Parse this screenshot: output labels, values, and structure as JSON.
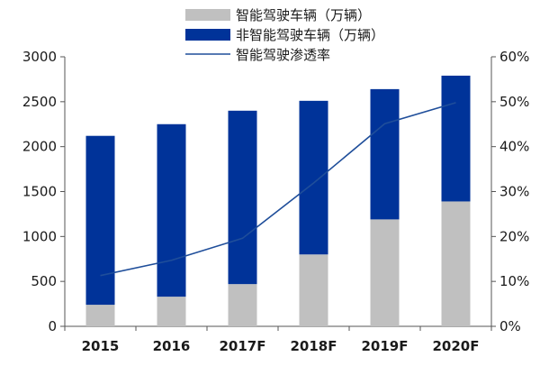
{
  "chart_data": {
    "type": "bar",
    "stacked": true,
    "categories": [
      "2015",
      "2016",
      "2017F",
      "2018F",
      "2019F",
      "2020F"
    ],
    "series": [
      {
        "name": "智能驾驶车辆（万辆）",
        "type": "bar",
        "axis": "left",
        "color": "#c0c0c0",
        "values": [
          240,
          330,
          470,
          800,
          1190,
          1390
        ]
      },
      {
        "name": "非智能驾驶车辆（万辆）",
        "type": "bar",
        "axis": "left",
        "color": "#003399",
        "values": [
          1880,
          1920,
          1930,
          1710,
          1450,
          1400
        ]
      },
      {
        "name": "智能驾驶渗透率",
        "type": "line",
        "axis": "right",
        "color": "#1f4e9a",
        "values": [
          11.3,
          14.7,
          19.6,
          31.9,
          45.1,
          49.8
        ]
      }
    ],
    "left_axis": {
      "ylim": [
        0,
        3000
      ],
      "ticks": [
        0,
        500,
        1000,
        1500,
        2000,
        2500,
        3000
      ],
      "labels": [
        "0",
        "500",
        "1000",
        "1500",
        "2000",
        "2500",
        "3000"
      ]
    },
    "right_axis": {
      "ylim": [
        0,
        60
      ],
      "ticks": [
        0,
        10,
        20,
        30,
        40,
        50,
        60
      ],
      "labels": [
        "0%",
        "10%",
        "20%",
        "30%",
        "40%",
        "50%",
        "60%"
      ]
    },
    "legend_position": "top-center",
    "grid": false
  }
}
